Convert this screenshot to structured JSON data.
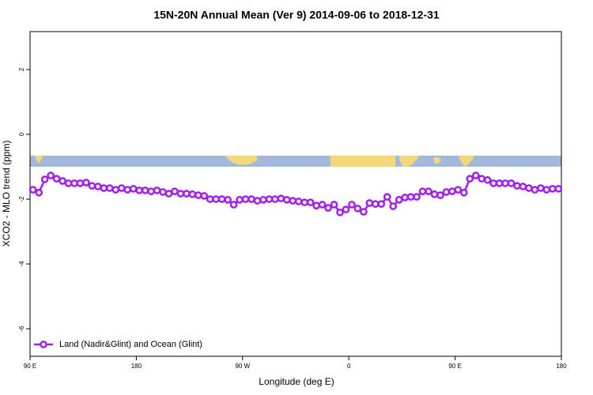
{
  "chart_data": {
    "type": "line",
    "title": "15N-20N Annual Mean (Ver 9)   2014-09-06 to 2018-12-31",
    "x_label": "Longitude (deg E)",
    "y_label": "XCO2 - MLO trend (ppm)",
    "xlim": [
      90,
      540
    ],
    "ylim": [
      -6.85,
      3.17
    ],
    "xticks": [
      {
        "value": 90,
        "label": "90 E"
      },
      180,
      {
        "value": 270,
        "label": "90 W"
      },
      {
        "value": 360,
        "label": "0"
      },
      {
        "value": 450,
        "label": "90 E"
      },
      {
        "value": 540,
        "label": "180"
      }
    ],
    "yticks": [
      -6,
      -4,
      -2,
      0,
      2
    ],
    "legend": "bottom-left",
    "x": [
      92.5,
      97.5,
      102.5,
      107.5,
      112.5,
      117.5,
      122.5,
      127.5,
      132.5,
      137.5,
      142.5,
      147.5,
      152.5,
      157.5,
      162.5,
      167.5,
      172.5,
      177.5,
      182.5,
      187.5,
      192.5,
      197.5,
      202.5,
      207.5,
      212.5,
      217.5,
      222.5,
      227.5,
      232.5,
      237.5,
      242.5,
      247.5,
      252.5,
      257.5,
      262.5,
      267.5,
      272.5,
      277.5,
      282.5,
      287.5,
      292.5,
      297.5,
      302.5,
      307.5,
      312.5,
      317.5,
      322.5,
      327.5,
      332.5,
      337.5,
      342.5,
      347.5,
      352.5,
      357.5,
      362.5,
      367.5,
      372.5,
      377.5,
      382.5,
      387.5,
      392.5,
      397.5,
      402.5,
      407.5,
      412.5,
      417.5,
      422.5,
      427.5,
      432.5,
      437.5,
      442.5,
      447.5,
      452.5,
      457.5,
      462.5,
      467.5,
      472.5,
      477.5,
      482.5,
      487.5,
      492.5,
      497.5,
      502.5,
      507.5,
      512.5,
      517.5,
      522.5,
      527.5,
      532.5,
      537.5
    ],
    "series": [
      {
        "name": "Land (Nadir&Glint) and Ocean (Glint)",
        "color": "#a020f0",
        "values": [
          -1.71,
          -1.8,
          -1.39,
          -1.27,
          -1.37,
          -1.44,
          -1.51,
          -1.51,
          -1.51,
          -1.49,
          -1.59,
          -1.61,
          -1.66,
          -1.66,
          -1.71,
          -1.66,
          -1.71,
          -1.68,
          -1.73,
          -1.73,
          -1.76,
          -1.73,
          -1.78,
          -1.83,
          -1.76,
          -1.83,
          -1.83,
          -1.85,
          -1.88,
          -1.9,
          -2.0,
          -2.0,
          -2.0,
          -2.02,
          -2.17,
          -2.02,
          -2.0,
          -2.0,
          -2.05,
          -2.02,
          -2.0,
          -2.0,
          -1.98,
          -2.02,
          -2.05,
          -2.07,
          -2.1,
          -2.1,
          -2.2,
          -2.17,
          -2.27,
          -2.17,
          -2.41,
          -2.32,
          -2.17,
          -2.29,
          -2.39,
          -2.12,
          -2.15,
          -2.15,
          -1.93,
          -2.22,
          -2.02,
          -1.95,
          -1.93,
          -1.93,
          -1.76,
          -1.76,
          -1.85,
          -1.88,
          -1.78,
          -1.76,
          -1.71,
          -1.8,
          -1.37,
          -1.27,
          -1.37,
          -1.41,
          -1.51,
          -1.51,
          -1.51,
          -1.51,
          -1.59,
          -1.61,
          -1.66,
          -1.71,
          -1.66,
          -1.71,
          -1.68,
          -1.68
        ]
      }
    ]
  }
}
